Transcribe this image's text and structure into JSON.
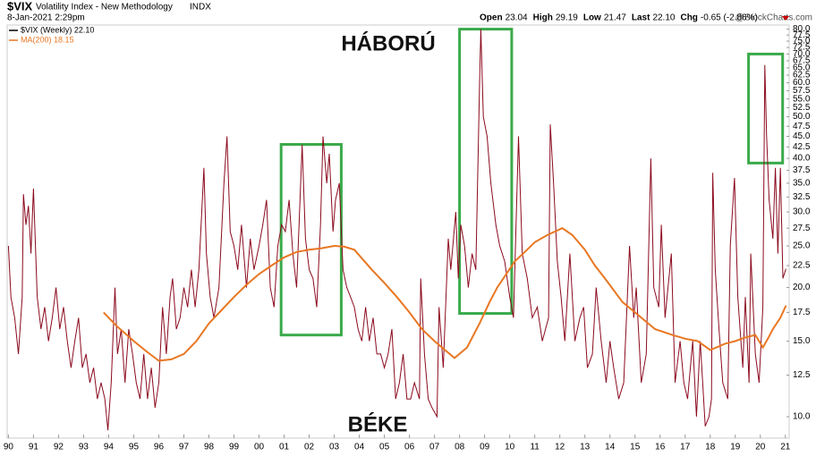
{
  "header": {
    "symbol": "$VIX",
    "name": "Volatility Index - New Methodology",
    "exchange": "INDX",
    "date": "8-Jan-2021 2:29pm",
    "quote": [
      {
        "label": "Open",
        "value": "23.04"
      },
      {
        "label": "High",
        "value": "29.19"
      },
      {
        "label": "Low",
        "value": "21.47"
      },
      {
        "label": "Last",
        "value": "22.10"
      },
      {
        "label": "Chg",
        "value": "-0.65 (-2.86%)"
      }
    ],
    "watermark": "@StockCharts.com"
  },
  "chart_data": {
    "type": "line",
    "log_scale": true,
    "grid": false,
    "annotations": [
      "HÁBORÚ",
      "BÉKE"
    ],
    "highlights": [
      {
        "xlim": [
          2000.88,
          2003.28
        ],
        "ylim": [
          15.5,
          43.1
        ],
        "color": "#3aaa4a"
      },
      {
        "xlim": [
          2008.0,
          2010.08
        ],
        "ylim": [
          17.4,
          80
        ]
      },
      {
        "xlim": [
          2019.53,
          2020.89
        ],
        "ylim": [
          39,
          70
        ]
      }
    ],
    "xlim": [
      1989.95,
      2021.15
    ],
    "xticks": [
      {
        "value": 1990,
        "label": "90"
      },
      {
        "value": 1991,
        "label": "91"
      },
      {
        "value": 1992,
        "label": "92"
      },
      {
        "value": 1993,
        "label": "93"
      },
      {
        "value": 1994,
        "label": "94"
      },
      {
        "value": 1995,
        "label": "95"
      },
      {
        "value": 1996,
        "label": "96"
      },
      {
        "value": 1997,
        "label": "97"
      },
      {
        "value": 1998,
        "label": "98"
      },
      {
        "value": 1999,
        "label": "99"
      },
      {
        "value": 2000,
        "label": "00"
      },
      {
        "value": 2001,
        "label": "01"
      },
      {
        "value": 2002,
        "label": "02"
      },
      {
        "value": 2003,
        "label": "03"
      },
      {
        "value": 2004,
        "label": "04"
      },
      {
        "value": 2005,
        "label": "05"
      },
      {
        "value": 2006,
        "label": "06"
      },
      {
        "value": 2007,
        "label": "07"
      },
      {
        "value": 2008,
        "label": "08"
      },
      {
        "value": 2009,
        "label": "09"
      },
      {
        "value": 2010,
        "label": "10"
      },
      {
        "value": 2011,
        "label": "11"
      },
      {
        "value": 2012,
        "label": "12"
      },
      {
        "value": 2013,
        "label": "13"
      },
      {
        "value": 2014,
        "label": "14"
      },
      {
        "value": 2015,
        "label": "15"
      },
      {
        "value": 2016,
        "label": "16"
      },
      {
        "value": 2017,
        "label": "17"
      },
      {
        "value": 2018,
        "label": "18"
      },
      {
        "value": 2019,
        "label": "19"
      },
      {
        "value": 2020,
        "label": "20"
      },
      {
        "value": 2021,
        "label": "21"
      }
    ],
    "ylim": [
      9,
      81
    ],
    "yticks": [
      {
        "value": 10,
        "label": "10.0"
      },
      12.5,
      {
        "value": 15,
        "label": "15.0"
      },
      17.5,
      {
        "value": 20,
        "label": "20.0"
      },
      22.5,
      {
        "value": 25,
        "label": "25.0"
      },
      27.5,
      {
        "value": 30,
        "label": "30.0"
      },
      32.5,
      {
        "value": 35,
        "label": "35.0"
      },
      37.5,
      {
        "value": 40,
        "label": "40.0"
      },
      42.5,
      {
        "value": 45,
        "label": "45.0"
      },
      47.5,
      {
        "value": 50,
        "label": "50.0"
      },
      52.5,
      {
        "value": 55,
        "label": "55.0"
      },
      57.5,
      {
        "value": 60,
        "label": "60.0"
      },
      62.5,
      {
        "value": 65,
        "label": "65.0"
      },
      67.5,
      {
        "value": 70,
        "label": "70.0"
      },
      72.5,
      {
        "value": 75,
        "label": "75.0"
      },
      77.5,
      {
        "value": 80,
        "label": "80.0"
      }
    ],
    "series": [
      {
        "name": "$VIX (Weekly) 22.10",
        "color": "#8b0a1e",
        "legend_color": "#000000",
        "x": [
          1990.0,
          1990.1,
          1990.25,
          1990.4,
          1990.55,
          1990.6,
          1990.7,
          1990.8,
          1990.9,
          1991.0,
          1991.05,
          1991.15,
          1991.3,
          1991.45,
          1991.6,
          1991.75,
          1991.9,
          1992.05,
          1992.2,
          1992.35,
          1992.5,
          1992.65,
          1992.8,
          1992.95,
          1993.1,
          1993.25,
          1993.4,
          1993.55,
          1993.7,
          1993.85,
          1993.97,
          1994.1,
          1994.25,
          1994.35,
          1994.5,
          1994.65,
          1994.8,
          1994.95,
          1995.1,
          1995.25,
          1995.4,
          1995.55,
          1995.7,
          1995.85,
          1996.0,
          1996.15,
          1996.3,
          1996.45,
          1996.55,
          1996.7,
          1996.85,
          1997.0,
          1997.15,
          1997.3,
          1997.45,
          1997.6,
          1997.8,
          1997.9,
          1998.05,
          1998.2,
          1998.4,
          1998.6,
          1998.72,
          1998.85,
          1999.0,
          1999.15,
          1999.3,
          1999.5,
          1999.65,
          1999.8,
          2000.0,
          2000.15,
          2000.3,
          2000.45,
          2000.6,
          2000.75,
          2000.9,
          2001.05,
          2001.2,
          2001.35,
          2001.5,
          2001.72,
          2001.85,
          2002.0,
          2002.15,
          2002.3,
          2002.45,
          2002.55,
          2002.7,
          2002.8,
          2002.95,
          2003.05,
          2003.2,
          2003.35,
          2003.5,
          2003.65,
          2003.8,
          2003.95,
          2004.1,
          2004.25,
          2004.4,
          2004.55,
          2004.7,
          2004.85,
          2005.0,
          2005.15,
          2005.3,
          2005.45,
          2005.6,
          2005.75,
          2005.9,
          2006.05,
          2006.2,
          2006.4,
          2006.45,
          2006.6,
          2006.75,
          2006.9,
          2007.1,
          2007.18,
          2007.35,
          2007.55,
          2007.65,
          2007.85,
          2007.95,
          2008.05,
          2008.2,
          2008.35,
          2008.5,
          2008.65,
          2008.8,
          2008.85,
          2008.95,
          2009.1,
          2009.25,
          2009.45,
          2009.6,
          2009.8,
          2010.0,
          2010.15,
          2010.35,
          2010.5,
          2010.7,
          2010.9,
          2011.1,
          2011.3,
          2011.55,
          2011.62,
          2011.75,
          2011.9,
          2012.05,
          2012.2,
          2012.4,
          2012.6,
          2012.8,
          2012.95,
          2013.1,
          2013.3,
          2013.45,
          2013.65,
          2013.85,
          2014.0,
          2014.15,
          2014.35,
          2014.55,
          2014.78,
          2014.95,
          2015.05,
          2015.25,
          2015.45,
          2015.63,
          2015.75,
          2015.95,
          2016.05,
          2016.2,
          2016.45,
          2016.6,
          2016.8,
          2016.95,
          2017.1,
          2017.3,
          2017.45,
          2017.6,
          2017.8,
          2017.95,
          2018.05,
          2018.1,
          2018.2,
          2018.35,
          2018.5,
          2018.7,
          2018.8,
          2018.97,
          2019.1,
          2019.3,
          2019.4,
          2019.55,
          2019.62,
          2019.8,
          2019.95,
          2020.1,
          2020.18,
          2020.25,
          2020.35,
          2020.5,
          2020.6,
          2020.7,
          2020.8,
          2020.9,
          2021.02
        ],
        "values": [
          25,
          19,
          17,
          14,
          19,
          33,
          28,
          31,
          24,
          34,
          28,
          19,
          16,
          18,
          15,
          17,
          20,
          16,
          18,
          15,
          13,
          15,
          17,
          13,
          14,
          12,
          13,
          11,
          12,
          11,
          9.3,
          12,
          20,
          14,
          16,
          12,
          16,
          14,
          12,
          11,
          14,
          11,
          13,
          10.5,
          12,
          18,
          14,
          19,
          21,
          16,
          17,
          20,
          18,
          22,
          18,
          22,
          38,
          24,
          19,
          17,
          20,
          35,
          45,
          27,
          25,
          22,
          28,
          20,
          26,
          22,
          25,
          28,
          32,
          20,
          18,
          25,
          28,
          27,
          32,
          24,
          20,
          43,
          26,
          22,
          21,
          18,
          28,
          45,
          35,
          41,
          27,
          32,
          35,
          22,
          20,
          19,
          18,
          16,
          15,
          18,
          15,
          17,
          14,
          14,
          13,
          14,
          16,
          11,
          12,
          14,
          11,
          11,
          12,
          11,
          21,
          14,
          11,
          10.5,
          10,
          18,
          13,
          26,
          22,
          30,
          21,
          28,
          25,
          20,
          24,
          22,
          60,
          80,
          50,
          45,
          35,
          28,
          25,
          23,
          19,
          17,
          45,
          24,
          21,
          17,
          18,
          15,
          17,
          48,
          35,
          23,
          19,
          15,
          24,
          15,
          17,
          18,
          13,
          14,
          20,
          15,
          12,
          15,
          13,
          11,
          12,
          25,
          17,
          20,
          12,
          14,
          40,
          20,
          18,
          28,
          17,
          24,
          12,
          15,
          12,
          11,
          15,
          10,
          15,
          9.5,
          10,
          11,
          37,
          22,
          16,
          12,
          11,
          25,
          36,
          19,
          13,
          19,
          12,
          24,
          14,
          12,
          18,
          66,
          45,
          32,
          26,
          38,
          24,
          38,
          21,
          22.1
        ]
      },
      {
        "name": "MA(200) 18.15",
        "color": "#e87722",
        "x": [
          1993.8,
          1994.3,
          1995.0,
          1995.5,
          1996.0,
          1996.5,
          1997.0,
          1997.5,
          1998.0,
          1998.5,
          1999.0,
          1999.5,
          2000.0,
          2000.5,
          2001.0,
          2001.5,
          2002.0,
          2002.5,
          2003.0,
          2003.4,
          2003.8,
          2004.5,
          2005.0,
          2005.5,
          2006.0,
          2006.5,
          2007.0,
          2007.3,
          2007.8,
          2008.3,
          2008.8,
          2009.2,
          2009.5,
          2010.2,
          2010.6,
          2011.0,
          2011.5,
          2011.8,
          2012.1,
          2012.5,
          2013.0,
          2013.4,
          2013.8,
          2014.5,
          2015.0,
          2015.8,
          2016.5,
          2017.0,
          2017.5,
          2018.0,
          2018.6,
          2019.0,
          2019.4,
          2019.8,
          2020.1,
          2020.3,
          2020.5,
          2020.8,
          2021.02
        ],
        "values": [
          17.5,
          16.3,
          15,
          14.2,
          13.5,
          13.6,
          14,
          15,
          16.5,
          17.7,
          19,
          20.3,
          21.5,
          22.5,
          23.5,
          24.2,
          24.5,
          24.7,
          25,
          24.9,
          24.5,
          22,
          20.5,
          19,
          17.5,
          16,
          15,
          14.5,
          13.7,
          14.5,
          16.5,
          18.5,
          20,
          23,
          24.2,
          25.5,
          26.5,
          27,
          27.5,
          26.5,
          24.5,
          22.5,
          21,
          18.5,
          17.5,
          16,
          15.5,
          15.2,
          15,
          14.3,
          14.8,
          15,
          15.3,
          15.5,
          14.5,
          15.2,
          16,
          17,
          18.15
        ]
      }
    ]
  }
}
